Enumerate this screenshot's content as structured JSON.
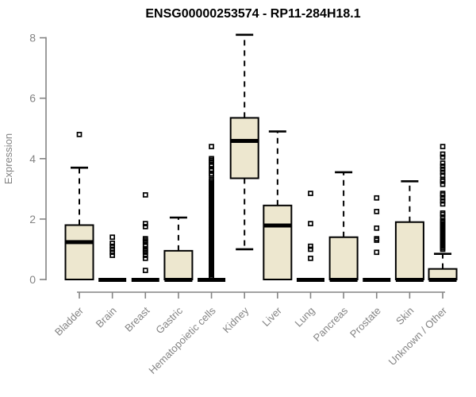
{
  "chart_data": {
    "type": "boxplot",
    "title": "ENSG00000253574 - RP11-284H18.1",
    "xlabel": "",
    "ylabel": "Expression",
    "ylim": [
      0,
      8
    ],
    "yticks": [
      0,
      2,
      4,
      6,
      8
    ],
    "grid": false,
    "legend": "none",
    "categories": [
      "Bladder",
      "Brain",
      "Breast",
      "Gastric",
      "Hematopoietic cells",
      "Kidney",
      "Liver",
      "Lung",
      "Pancreas",
      "Prostate",
      "Skin",
      "Unknown / Other"
    ],
    "series": [
      {
        "category": "Bladder",
        "q1": 0,
        "median": 1.25,
        "q3": 1.8,
        "whisker_low": 0,
        "whisker_high": 3.7,
        "outliers": [
          4.8
        ]
      },
      {
        "category": "Brain",
        "q1": 0,
        "median": 0,
        "q3": 0,
        "whisker_low": 0,
        "whisker_high": 0,
        "outliers": [
          1.4,
          1.2,
          1.1,
          1.0,
          0.9,
          0.8
        ]
      },
      {
        "category": "Breast",
        "q1": 0,
        "median": 0,
        "q3": 0,
        "whisker_low": 0,
        "whisker_high": 0,
        "outliers": [
          2.8,
          1.85,
          1.75,
          1.35,
          1.3,
          1.25,
          1.15,
          1.1,
          1.0,
          0.95,
          0.9,
          0.8,
          0.7,
          0.3
        ]
      },
      {
        "category": "Gastric",
        "q1": 0,
        "median": 0,
        "q3": 0.95,
        "whisker_low": 0,
        "whisker_high": 2.05,
        "outliers": []
      },
      {
        "category": "Hematopoietic cells",
        "q1": 0,
        "median": 0,
        "q3": 0,
        "whisker_low": 0,
        "whisker_high": 0,
        "outliers": [
          4.4,
          4.0,
          3.95,
          3.9,
          3.8,
          3.75,
          3.65,
          3.6,
          3.5,
          3.45,
          3.3,
          3.25,
          3.2,
          3.15,
          3.1,
          3.05,
          3.0,
          2.95,
          2.9,
          2.85,
          2.8,
          2.75,
          2.7,
          2.65,
          2.6,
          2.55,
          2.5,
          2.45,
          2.4,
          2.35,
          2.3,
          2.25,
          2.2,
          2.15,
          2.1,
          2.05,
          2.0,
          1.95,
          1.9,
          1.85,
          1.8,
          1.75,
          1.7,
          1.65,
          1.6,
          1.55,
          1.5,
          1.45,
          1.4,
          1.35,
          1.3,
          1.25,
          1.2,
          1.15,
          1.1,
          1.05,
          1.0,
          0.95,
          0.9,
          0.85,
          0.8,
          0.75,
          0.7,
          0.65,
          0.6,
          0.55,
          0.5,
          0.45,
          0.4,
          0.35,
          0.3,
          0.25,
          0.2,
          0.15,
          0.1,
          0.05
        ]
      },
      {
        "category": "Kidney",
        "q1": 3.35,
        "median": 4.6,
        "q3": 5.35,
        "whisker_low": 1.0,
        "whisker_high": 8.1,
        "outliers": []
      },
      {
        "category": "Liver",
        "q1": 0,
        "median": 1.8,
        "q3": 2.45,
        "whisker_low": 0,
        "whisker_high": 4.9,
        "outliers": []
      },
      {
        "category": "Lung",
        "q1": 0,
        "median": 0,
        "q3": 0,
        "whisker_low": 0,
        "whisker_high": 0,
        "outliers": [
          2.85,
          1.85,
          1.1,
          1.0,
          0.7
        ]
      },
      {
        "category": "Pancreas",
        "q1": 0,
        "median": 0,
        "q3": 1.4,
        "whisker_low": 0,
        "whisker_high": 3.55,
        "outliers": []
      },
      {
        "category": "Prostate",
        "q1": 0,
        "median": 0,
        "q3": 0,
        "whisker_low": 0,
        "whisker_high": 0,
        "outliers": [
          2.7,
          2.25,
          1.7,
          1.35,
          1.3,
          0.9
        ]
      },
      {
        "category": "Skin",
        "q1": 0,
        "median": 0,
        "q3": 1.9,
        "whisker_low": 0,
        "whisker_high": 3.25,
        "outliers": []
      },
      {
        "category": "Unknown / Other",
        "q1": 0,
        "median": 0,
        "q3": 0.35,
        "whisker_low": 0,
        "whisker_high": 0.85,
        "outliers": [
          4.4,
          4.15,
          4.05,
          3.85,
          3.75,
          3.65,
          3.55,
          3.45,
          3.3,
          3.25,
          3.15,
          2.85,
          2.8,
          2.7,
          2.6,
          2.5,
          2.2,
          2.15,
          2.05,
          1.95,
          1.9,
          1.85,
          1.8,
          1.75,
          1.7,
          1.65,
          1.6,
          1.55,
          1.5,
          1.45,
          1.4,
          1.35,
          1.3,
          1.25,
          1.2,
          1.15,
          1.1,
          1.05,
          1.0
        ]
      }
    ],
    "style": {
      "box_fill": "#EDE7CF",
      "box_stroke": "#000000",
      "median_color": "#000000",
      "whisker_color": "#000000",
      "outlier_color": "#000000",
      "axis_color": "#848484",
      "label_color": "#848484",
      "title_color": "#000000",
      "background": "#FFFFFF"
    }
  }
}
